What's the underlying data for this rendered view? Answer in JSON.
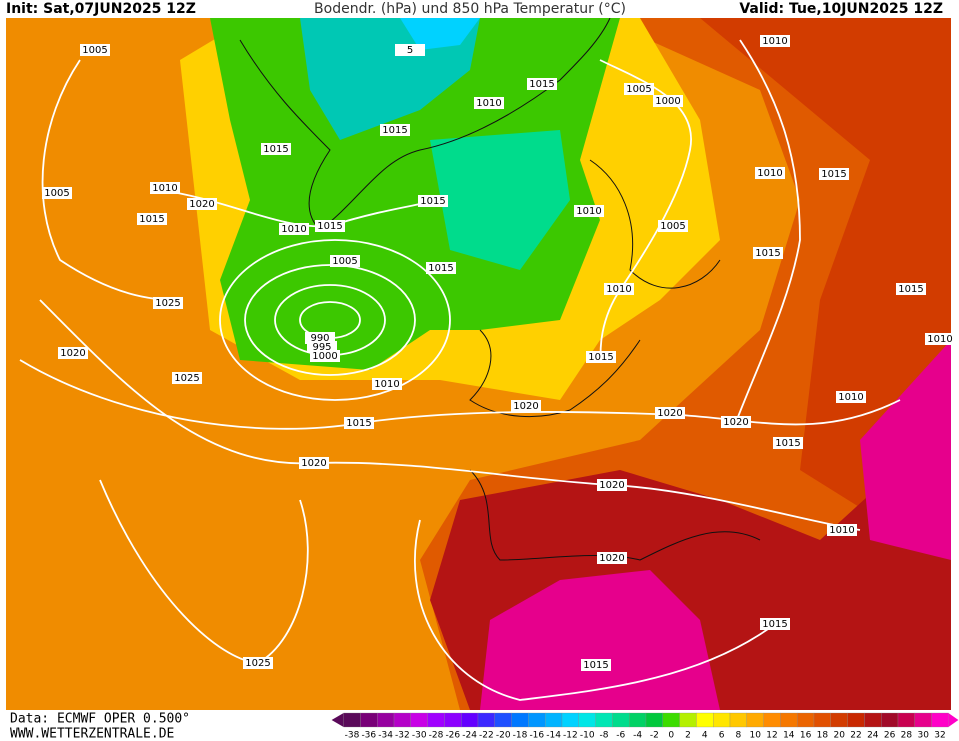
{
  "header": {
    "init": "Init: Sat,07JUN2025 12Z",
    "title": "Bodendr. (hPa) und 850 hPa Temperatur (°C)",
    "valid": "Valid: Tue,10JUN2025 12Z"
  },
  "footer": {
    "source": "Data: ECMWF OPER 0.500°",
    "site": "WWW.WETTERZENTRALE.DE"
  },
  "legend": {
    "labels": [
      -38,
      -36,
      -34,
      -32,
      -30,
      -28,
      -26,
      -24,
      -22,
      -20,
      -18,
      -16,
      -14,
      -12,
      -10,
      -8,
      -6,
      -4,
      -2,
      0,
      2,
      4,
      6,
      8,
      10,
      12,
      14,
      16,
      18,
      20,
      22,
      24,
      26,
      28,
      30,
      32
    ],
    "colors": [
      "#5a0a5a",
      "#780078",
      "#9600a0",
      "#b400c8",
      "#c800e6",
      "#a000ff",
      "#8c00ff",
      "#6400ff",
      "#3c28ff",
      "#1e50ff",
      "#0078ff",
      "#0096ff",
      "#00b4ff",
      "#00d2ff",
      "#00e6e6",
      "#00e6b4",
      "#00dc8c",
      "#00d264",
      "#00c83c",
      "#3cdc00",
      "#b4f000",
      "#ffff00",
      "#ffe600",
      "#ffc800",
      "#ffaa00",
      "#ff8c00",
      "#f57800",
      "#eb6400",
      "#e15000",
      "#d23c00",
      "#c82800",
      "#b41414",
      "#a00a28",
      "#c80050",
      "#e6008c",
      "#ff00c8"
    ]
  },
  "isobars": {
    "labels": [
      "1005",
      "1010",
      "1015",
      "1010",
      "1005",
      "1000",
      "1015",
      "1015",
      "1005",
      "1010",
      "1020",
      "1015",
      "1010",
      "1015",
      "1010",
      "1015",
      "1010",
      "1015",
      "1005",
      "1005",
      "1015",
      "1015",
      "1010",
      "1025",
      "1015",
      "990",
      "995",
      "1000",
      "1010",
      "1020",
      "1015",
      "1025",
      "1010",
      "1010",
      "1020",
      "1020",
      "1020",
      "1015",
      "1015",
      "1020",
      "1020",
      "1010",
      "1020",
      "1015",
      "1025",
      "1015",
      "5"
    ]
  }
}
